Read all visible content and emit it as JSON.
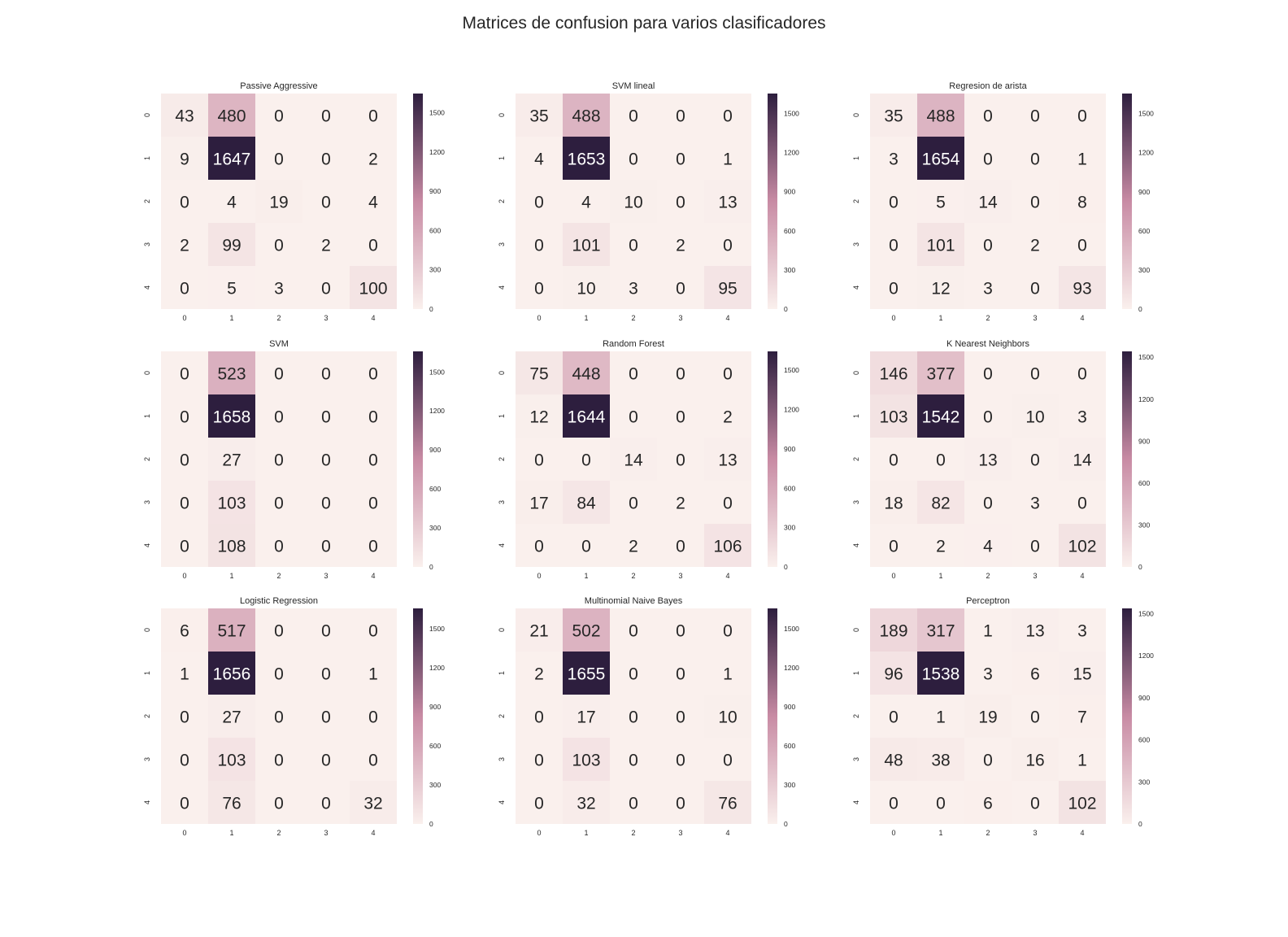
{
  "figure": {
    "title": "Matrices de confusion para varios clasificadores"
  },
  "colormap": {
    "low": "#faf0ed",
    "mid": "#c88ba4",
    "high": "#2d1e3e",
    "ticks": [
      "0",
      "300",
      "600",
      "900",
      "1200",
      "1500"
    ],
    "text_light": "#ffffff",
    "text_dark": "#262626"
  },
  "chart_data": [
    {
      "type": "heatmap",
      "title": "Passive Aggressive",
      "x_categories": [
        "0",
        "1",
        "2",
        "3",
        "4"
      ],
      "y_categories": [
        "0",
        "1",
        "2",
        "3",
        "4"
      ],
      "values": [
        [
          43,
          480,
          0,
          0,
          0
        ],
        [
          9,
          1647,
          0,
          0,
          2
        ],
        [
          0,
          4,
          19,
          0,
          4
        ],
        [
          2,
          99,
          0,
          2,
          0
        ],
        [
          0,
          5,
          3,
          0,
          100
        ]
      ],
      "colorbar_range": [
        0,
        1647
      ]
    },
    {
      "type": "heatmap",
      "title": "SVM lineal",
      "x_categories": [
        "0",
        "1",
        "2",
        "3",
        "4"
      ],
      "y_categories": [
        "0",
        "1",
        "2",
        "3",
        "4"
      ],
      "values": [
        [
          35,
          488,
          0,
          0,
          0
        ],
        [
          4,
          1653,
          0,
          0,
          1
        ],
        [
          0,
          4,
          10,
          0,
          13
        ],
        [
          0,
          101,
          0,
          2,
          0
        ],
        [
          0,
          10,
          3,
          0,
          95
        ]
      ],
      "colorbar_range": [
        0,
        1653
      ]
    },
    {
      "type": "heatmap",
      "title": "Regresion de arista",
      "x_categories": [
        "0",
        "1",
        "2",
        "3",
        "4"
      ],
      "y_categories": [
        "0",
        "1",
        "2",
        "3",
        "4"
      ],
      "values": [
        [
          35,
          488,
          0,
          0,
          0
        ],
        [
          3,
          1654,
          0,
          0,
          1
        ],
        [
          0,
          5,
          14,
          0,
          8
        ],
        [
          0,
          101,
          0,
          2,
          0
        ],
        [
          0,
          12,
          3,
          0,
          93
        ]
      ],
      "colorbar_range": [
        0,
        1654
      ]
    },
    {
      "type": "heatmap",
      "title": "SVM",
      "x_categories": [
        "0",
        "1",
        "2",
        "3",
        "4"
      ],
      "y_categories": [
        "0",
        "1",
        "2",
        "3",
        "4"
      ],
      "values": [
        [
          0,
          523,
          0,
          0,
          0
        ],
        [
          0,
          1658,
          0,
          0,
          0
        ],
        [
          0,
          27,
          0,
          0,
          0
        ],
        [
          0,
          103,
          0,
          0,
          0
        ],
        [
          0,
          108,
          0,
          0,
          0
        ]
      ],
      "colorbar_range": [
        0,
        1658
      ]
    },
    {
      "type": "heatmap",
      "title": "Random Forest",
      "x_categories": [
        "0",
        "1",
        "2",
        "3",
        "4"
      ],
      "y_categories": [
        "0",
        "1",
        "2",
        "3",
        "4"
      ],
      "values": [
        [
          75,
          448,
          0,
          0,
          0
        ],
        [
          12,
          1644,
          0,
          0,
          2
        ],
        [
          0,
          0,
          14,
          0,
          13
        ],
        [
          17,
          84,
          0,
          2,
          0
        ],
        [
          0,
          0,
          2,
          0,
          106
        ]
      ],
      "colorbar_range": [
        0,
        1644
      ]
    },
    {
      "type": "heatmap",
      "title": "K Nearest Neighbors",
      "x_categories": [
        "0",
        "1",
        "2",
        "3",
        "4"
      ],
      "y_categories": [
        "0",
        "1",
        "2",
        "3",
        "4"
      ],
      "values": [
        [
          146,
          377,
          0,
          0,
          0
        ],
        [
          103,
          1542,
          0,
          10,
          3
        ],
        [
          0,
          0,
          13,
          0,
          14
        ],
        [
          18,
          82,
          0,
          3,
          0
        ],
        [
          0,
          2,
          4,
          0,
          102
        ]
      ],
      "colorbar_range": [
        0,
        1542
      ]
    },
    {
      "type": "heatmap",
      "title": "Logistic Regression",
      "x_categories": [
        "0",
        "1",
        "2",
        "3",
        "4"
      ],
      "y_categories": [
        "0",
        "1",
        "2",
        "3",
        "4"
      ],
      "values": [
        [
          6,
          517,
          0,
          0,
          0
        ],
        [
          1,
          1656,
          0,
          0,
          1
        ],
        [
          0,
          27,
          0,
          0,
          0
        ],
        [
          0,
          103,
          0,
          0,
          0
        ],
        [
          0,
          76,
          0,
          0,
          32
        ]
      ],
      "colorbar_range": [
        0,
        1656
      ]
    },
    {
      "type": "heatmap",
      "title": "Multinomial Naive Bayes",
      "x_categories": [
        "0",
        "1",
        "2",
        "3",
        "4"
      ],
      "y_categories": [
        "0",
        "1",
        "2",
        "3",
        "4"
      ],
      "values": [
        [
          21,
          502,
          0,
          0,
          0
        ],
        [
          2,
          1655,
          0,
          0,
          1
        ],
        [
          0,
          17,
          0,
          0,
          10
        ],
        [
          0,
          103,
          0,
          0,
          0
        ],
        [
          0,
          32,
          0,
          0,
          76
        ]
      ],
      "colorbar_range": [
        0,
        1655
      ]
    },
    {
      "type": "heatmap",
      "title": "Perceptron",
      "x_categories": [
        "0",
        "1",
        "2",
        "3",
        "4"
      ],
      "y_categories": [
        "0",
        "1",
        "2",
        "3",
        "4"
      ],
      "values": [
        [
          189,
          317,
          1,
          13,
          3
        ],
        [
          96,
          1538,
          3,
          6,
          15
        ],
        [
          0,
          1,
          19,
          0,
          7
        ],
        [
          48,
          38,
          0,
          16,
          1
        ],
        [
          0,
          0,
          6,
          0,
          102
        ]
      ],
      "colorbar_range": [
        0,
        1538
      ]
    }
  ]
}
